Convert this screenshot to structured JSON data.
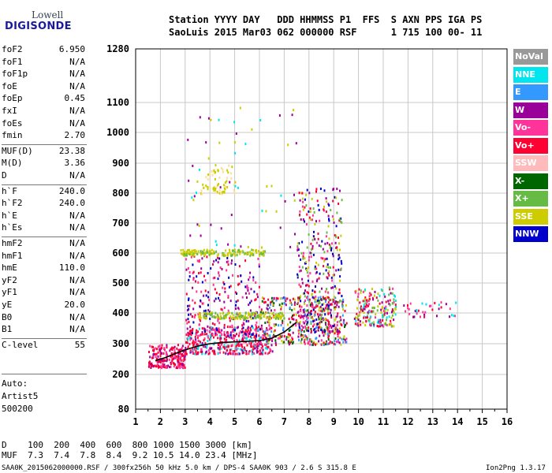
{
  "logo": {
    "line1": "Lowell",
    "line2": "DIGISONDE"
  },
  "header": {
    "line1": "Station YYYY DAY   DDD HHMMSS P1  FFS  S AXN PPS IGA PS",
    "line2": "SaoLuis 2015 Mar03 062 000000 RSF      1 715 100 00- 11"
  },
  "params_group1": [
    {
      "name": "foF2",
      "value": "6.950"
    },
    {
      "name": "foF1",
      "value": "N/A"
    },
    {
      "name": "foF1p",
      "value": "N/A"
    },
    {
      "name": "foE",
      "value": "N/A"
    },
    {
      "name": "foEp",
      "value": "0.45"
    },
    {
      "name": "fxI",
      "value": "N/A"
    },
    {
      "name": "foEs",
      "value": "N/A"
    },
    {
      "name": "fmin",
      "value": "2.70"
    }
  ],
  "params_group2": [
    {
      "name": "MUF(D)",
      "value": "23.38"
    },
    {
      "name": "M(D)",
      "value": "3.36"
    },
    {
      "name": "D",
      "value": "N/A"
    }
  ],
  "params_group3": [
    {
      "name": "h`F",
      "value": "240.0"
    },
    {
      "name": "h`F2",
      "value": "240.0"
    },
    {
      "name": "h`E",
      "value": "N/A"
    },
    {
      "name": "h`Es",
      "value": "N/A"
    }
  ],
  "params_group4": [
    {
      "name": "hmF2",
      "value": "N/A"
    },
    {
      "name": "hmF1",
      "value": "N/A"
    },
    {
      "name": "hmE",
      "value": "110.0"
    },
    {
      "name": "yF2",
      "value": "N/A"
    },
    {
      "name": "yF1",
      "value": "N/A"
    },
    {
      "name": "yE",
      "value": "20.0"
    },
    {
      "name": "B0",
      "value": "N/A"
    },
    {
      "name": "B1",
      "value": "N/A"
    }
  ],
  "params_group5": [
    {
      "name": "C-level",
      "value": "55"
    }
  ],
  "auto": [
    "Auto:",
    "Artist5",
    "500200"
  ],
  "legend": [
    {
      "label": "NoVal",
      "color": "#999999"
    },
    {
      "label": "NNE",
      "color": "#00e5ee"
    },
    {
      "label": "E",
      "color": "#3399ff"
    },
    {
      "label": "W",
      "color": "#990099"
    },
    {
      "label": "Vo-",
      "color": "#ff3399"
    },
    {
      "label": "Vo+",
      "color": "#ff0033"
    },
    {
      "label": "SSW",
      "color": "#ffbbbb"
    },
    {
      "label": "X-",
      "color": "#006600"
    },
    {
      "label": "X+",
      "color": "#66bb44"
    },
    {
      "label": "SSE",
      "color": "#cccc00"
    },
    {
      "label": "NNW",
      "color": "#0000cc"
    }
  ],
  "bottom": {
    "d_row": "D    100  200  400  600  800 1000 1500 3000 [km]",
    "muf_row": "MUF  7.3  7.4  7.8  8.4  9.2 10.5 14.0 23.4 [MHz]"
  },
  "footer": {
    "left": "SAA0K_2015062000000.RSF / 300fx256h 50 kHz 5.0 km / DPS-4 SAA0K 903 / 2.6 S 315.8 E",
    "right": "Ion2Png 1.3.17"
  },
  "chart_data": {
    "type": "scatter",
    "x_ticks": [
      "1",
      "2",
      "3",
      "4",
      "5",
      "6",
      "7",
      "8",
      "9",
      "10",
      "11",
      "12",
      "13",
      "14",
      "15",
      "16"
    ],
    "y_ticks": [
      "80",
      "200",
      "300",
      "400",
      "500",
      "600",
      "700",
      "800",
      "900",
      "1000",
      "1100",
      "1280"
    ],
    "xlim": [
      1,
      16
    ],
    "y_axis_scale": "nonlinear, 80 to 1280",
    "grid": true,
    "legend_position": "right",
    "series": [
      {
        "name": "trace",
        "x": [
          1.8,
          2.2,
          2.6,
          3.0,
          3.5,
          4.0,
          4.5,
          5.0,
          5.5,
          6.0,
          6.5,
          7.0,
          7.5
        ],
        "y": [
          245,
          255,
          268,
          280,
          292,
          300,
          304,
          306,
          308,
          310,
          318,
          338,
          370
        ]
      }
    ],
    "clusters": [
      {
        "x0": 1.5,
        "x1": 3.0,
        "y0": 225,
        "y1": 300,
        "n": 220,
        "colors": [
          "#ff0033",
          "#ff0033",
          "#ff3399",
          "#990099"
        ]
      },
      {
        "x0": 3.0,
        "x1": 6.5,
        "y0": 270,
        "y1": 360,
        "n": 420,
        "colors": [
          "#ff0033",
          "#ff0033",
          "#ff3399",
          "#990099",
          "#00e5ee"
        ]
      },
      {
        "x0": 6.0,
        "x1": 9.5,
        "y0": 300,
        "y1": 460,
        "n": 420,
        "colors": [
          "#ff0033",
          "#ff3399",
          "#990099",
          "#3399ff",
          "#cccc00",
          "#006600"
        ]
      },
      {
        "x0": 7.5,
        "x1": 9.3,
        "y0": 340,
        "y1": 820,
        "n": 380,
        "colors": [
          "#ff0033",
          "#990099",
          "#ff3399",
          "#cccc00",
          "#66bb44",
          "#0000cc"
        ]
      },
      {
        "x0": 3.0,
        "x1": 6.0,
        "y0": 330,
        "y1": 600,
        "n": 260,
        "colors": [
          "#990099",
          "#ff0033",
          "#ff3399",
          "#0000cc"
        ]
      },
      {
        "x0": 2.8,
        "x1": 6.2,
        "y0": 595,
        "y1": 615,
        "n": 160,
        "colors": [
          "#cccc00",
          "#cccc00",
          "#66bb44"
        ]
      },
      {
        "x0": 3.5,
        "x1": 7.0,
        "y0": 385,
        "y1": 405,
        "n": 160,
        "colors": [
          "#cccc00",
          "#cccc00",
          "#66bb44"
        ]
      },
      {
        "x0": 9.8,
        "x1": 11.5,
        "y0": 360,
        "y1": 490,
        "n": 200,
        "colors": [
          "#ff0033",
          "#cccc00",
          "#990099",
          "#ff3399",
          "#66bb44",
          "#00e5ee"
        ]
      },
      {
        "x0": 11.8,
        "x1": 14.0,
        "y0": 390,
        "y1": 440,
        "n": 40,
        "colors": [
          "#ff0033",
          "#990099",
          "#ff3399",
          "#00e5ee"
        ]
      },
      {
        "x0": 3.6,
        "x1": 5.0,
        "y0": 800,
        "y1": 900,
        "n": 70,
        "colors": [
          "#cccc00",
          "#ffdd99"
        ]
      },
      {
        "x0": 3.0,
        "x1": 7.5,
        "y0": 620,
        "y1": 1100,
        "n": 60,
        "colors": [
          "#cccc00",
          "#990099",
          "#00e5ee"
        ]
      }
    ]
  }
}
